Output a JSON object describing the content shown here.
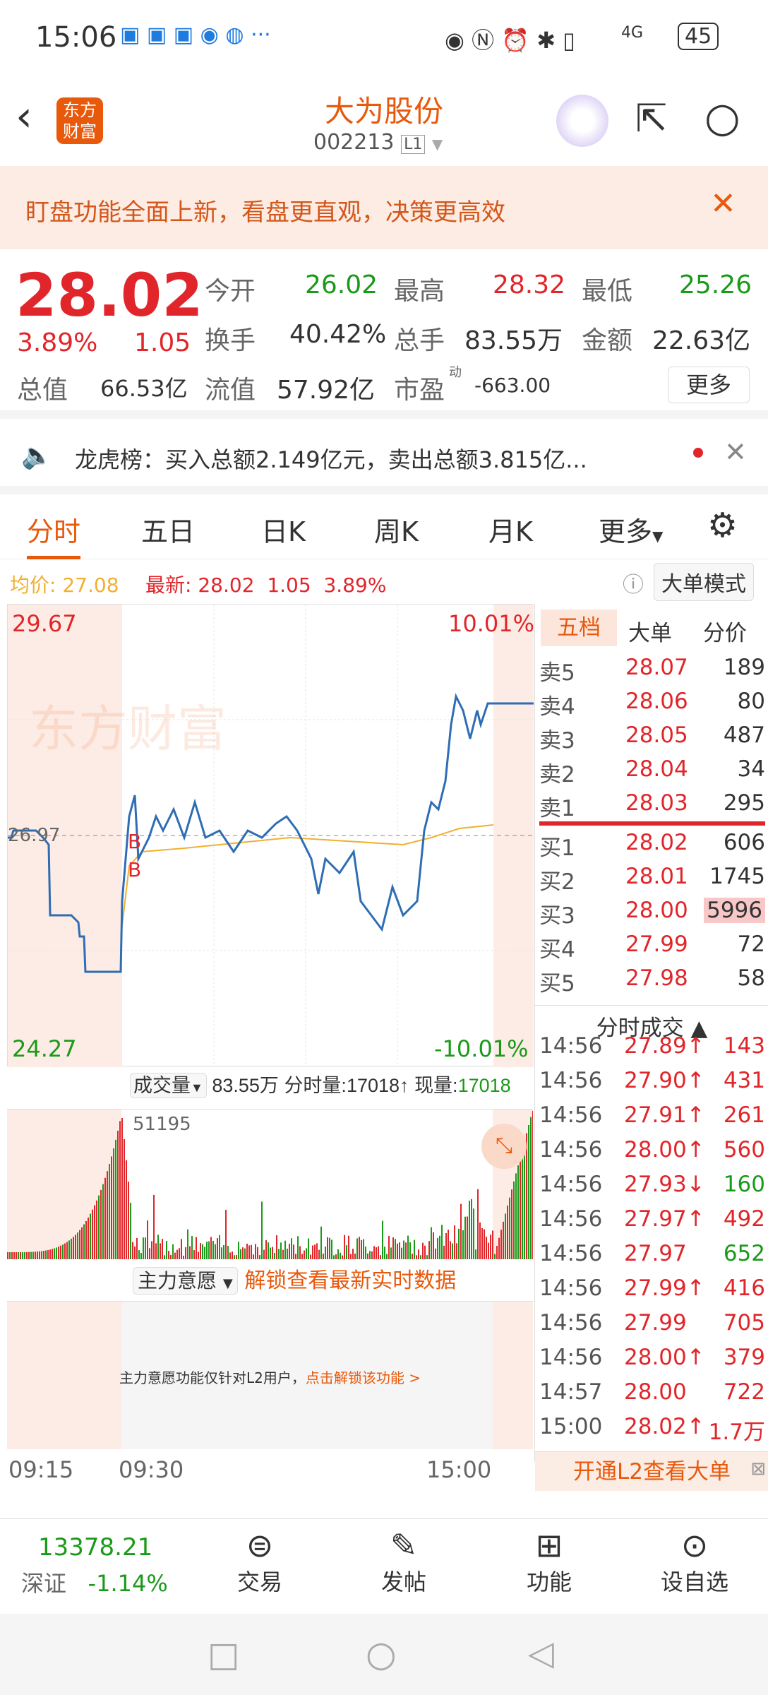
{
  "status": {
    "time": "15:06",
    "battery": "45",
    "network": "4G"
  },
  "header": {
    "title": "大为股份",
    "code": "002213",
    "level": "L1",
    "logo": "东方财富"
  },
  "banner": {
    "text": "盯盘功能全面上新，看盘更直观，决策更高效"
  },
  "quote": {
    "price": "28.02",
    "change_pct": "3.89%",
    "change": "1.05",
    "fields": [
      {
        "label": "今开",
        "value": "26.02",
        "color": "green"
      },
      {
        "label": "最高",
        "value": "28.32",
        "color": "red"
      },
      {
        "label": "最低",
        "value": "25.26",
        "color": "green"
      },
      {
        "label": "换手",
        "value": "40.42%"
      },
      {
        "label": "总手",
        "value": "83.55万"
      },
      {
        "label": "金额",
        "value": "22.63亿"
      },
      {
        "label": "总值",
        "value": "66.53亿"
      },
      {
        "label": "流值",
        "value": "57.92亿"
      },
      {
        "label": "市盈",
        "sup": "动",
        "value": "-663.00"
      }
    ],
    "more": "更多"
  },
  "lhb": {
    "text": "龙虎榜：买入总额2.149亿元，卖出总额3.815亿..."
  },
  "tabs": [
    "分时",
    "五日",
    "日K",
    "周K",
    "月K",
    "更多"
  ],
  "info": {
    "avg_label": "均价:",
    "avg": "27.08",
    "latest_label": "最新:",
    "latest": "28.02",
    "chg": "1.05",
    "pct": "3.89%",
    "mode": "大单模式"
  },
  "chart": {
    "y_high": "29.67",
    "y_low": "24.27",
    "y_mid": "26.97",
    "pct_high": "10.01%",
    "pct_low": "-10.01%",
    "watermark": "东方财富",
    "marks": [
      "B",
      "B"
    ]
  },
  "volume": {
    "selector": "成交量",
    "total": "83.55万",
    "fsl_label": "分时量:",
    "fsl": "17018↑",
    "xl_label": "现量:",
    "xl": "17018",
    "max": "51195"
  },
  "zlyy": {
    "selector": "主力意愿",
    "unlock": "解锁查看最新实时数据",
    "notice": "主力意愿功能仅针对L2用户，",
    "notice_link": "点击解锁该功能 >"
  },
  "time_axis": [
    "09:15",
    "09:30",
    "15:00"
  ],
  "right": {
    "tabs": [
      "五档",
      "大单",
      "分价"
    ],
    "asks": [
      [
        "卖5",
        "28.07",
        "189"
      ],
      [
        "卖4",
        "28.06",
        "80"
      ],
      [
        "卖3",
        "28.05",
        "487"
      ],
      [
        "卖2",
        "28.04",
        "34"
      ],
      [
        "卖1",
        "28.03",
        "295"
      ]
    ],
    "bids": [
      [
        "买1",
        "28.02",
        "606"
      ],
      [
        "买2",
        "28.01",
        "1745"
      ],
      [
        "买3",
        "28.00",
        "5996"
      ],
      [
        "买4",
        "27.99",
        "72"
      ],
      [
        "买5",
        "27.98",
        "58"
      ]
    ],
    "ticks_title": "分时成交 ▲",
    "ticks": [
      [
        "14:56",
        "27.89↑",
        "143",
        "red"
      ],
      [
        "14:56",
        "27.90↑",
        "431",
        "red"
      ],
      [
        "14:56",
        "27.91↑",
        "261",
        "red"
      ],
      [
        "14:56",
        "28.00↑",
        "560",
        "red"
      ],
      [
        "14:56",
        "27.93↓",
        "160",
        "green"
      ],
      [
        "14:56",
        "27.97↑",
        "492",
        "red"
      ],
      [
        "14:56",
        "27.97",
        "652",
        "green"
      ],
      [
        "14:56",
        "27.99↑",
        "416",
        "red"
      ],
      [
        "14:56",
        "27.99",
        "705",
        "red"
      ],
      [
        "14:56",
        "28.00↑",
        "379",
        "red"
      ],
      [
        "14:57",
        "28.00",
        "722",
        "red"
      ],
      [
        "15:00",
        "28.02↑",
        "1.7万",
        "red"
      ]
    ],
    "l2": "开通L2查看大单"
  },
  "bottom": {
    "index_value": "13378.21",
    "index_name": "深证",
    "index_pct": "-1.14%",
    "items": [
      "交易",
      "发帖",
      "功能",
      "设自选"
    ]
  },
  "colors": {
    "up": "#e0262b",
    "down": "#1a9a1a",
    "accent": "#e8590c",
    "line": "#2e6db4",
    "avg": "#f0b030"
  }
}
